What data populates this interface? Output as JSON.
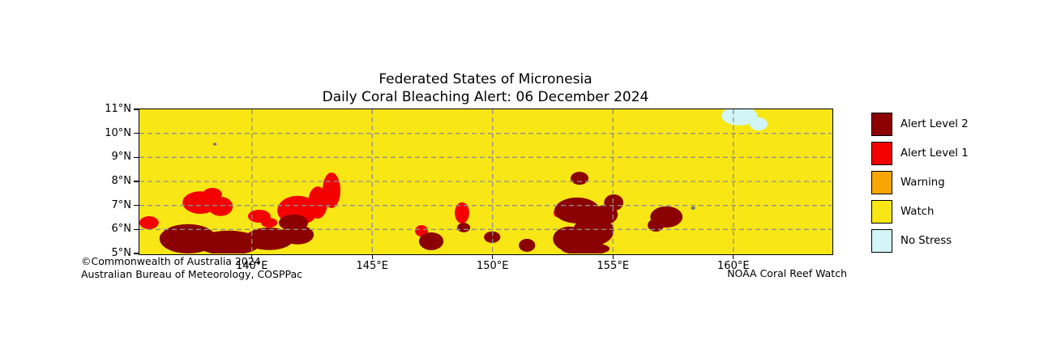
{
  "title": {
    "line1": "Federated States of Micronesia",
    "line2": "Daily Coral Bleaching Alert: 06 December 2024"
  },
  "credits": {
    "copyright": "©Commonwealth of Australia 2024",
    "agency": "Australian Bureau of Meteorology, COSPPac",
    "source": "NOAA Coral Reef Watch"
  },
  "legend": {
    "items": [
      {
        "key": "alert2",
        "label": "Alert Level 2",
        "color": "#8b0000"
      },
      {
        "key": "alert1",
        "label": "Alert Level 1",
        "color": "#f40000"
      },
      {
        "key": "warning",
        "label": "Warning",
        "color": "#f9a602"
      },
      {
        "key": "watch",
        "label": "Watch",
        "color": "#f8e715"
      },
      {
        "key": "nostress",
        "label": "No Stress",
        "color": "#d2f5f7"
      }
    ]
  },
  "chart_data": {
    "type": "heatmap",
    "title": "Federated States of Micronesia — Daily Coral Bleaching Alert: 06 December 2024",
    "x_axis": {
      "unit": "°E",
      "range": [
        135.33,
        164.08
      ],
      "ticks": [
        {
          "value": 140,
          "label": "140°E"
        },
        {
          "value": 145,
          "label": "145°E"
        },
        {
          "value": 150,
          "label": "150°E"
        },
        {
          "value": 155,
          "label": "155°E"
        },
        {
          "value": 160,
          "label": "160°E"
        }
      ]
    },
    "y_axis": {
      "unit": "°N",
      "range": [
        5,
        11
      ],
      "ticks": [
        {
          "value": 5,
          "label": "5°N"
        },
        {
          "value": 6,
          "label": "6°N"
        },
        {
          "value": 7,
          "label": "7°N"
        },
        {
          "value": 8,
          "label": "8°N"
        },
        {
          "value": 9,
          "label": "9°N"
        },
        {
          "value": 10,
          "label": "10°N"
        },
        {
          "value": 11,
          "label": "11°N"
        }
      ]
    },
    "grid": {
      "x_values": [
        140,
        145,
        150,
        155,
        160
      ],
      "y_values": [
        6,
        7,
        8,
        9,
        10
      ],
      "style": "dashed",
      "color": "#8f8f8f"
    },
    "background_level": "watch",
    "colors": {
      "alert2": "#8b0000",
      "alert1": "#f40000",
      "warning": "#f9a602",
      "watch": "#f8e715",
      "nostress": "#d2f5f7",
      "land": "#787878"
    },
    "regions": [
      {
        "level": "alert1",
        "lon": 137.86,
        "lat": 7.12,
        "rx": 0.74,
        "ry": 0.47
      },
      {
        "level": "alert1",
        "lon": 138.7,
        "lat": 6.96,
        "rx": 0.51,
        "ry": 0.4
      },
      {
        "level": "alert1",
        "lon": 138.36,
        "lat": 7.46,
        "rx": 0.4,
        "ry": 0.27
      },
      {
        "level": "alert1",
        "lon": 135.73,
        "lat": 6.28,
        "rx": 0.4,
        "ry": 0.27
      },
      {
        "level": "alert1",
        "lon": 136.51,
        "lat": 5.67,
        "rx": 0.34,
        "ry": 0.27
      },
      {
        "level": "alert1",
        "lon": 141.9,
        "lat": 6.79,
        "rx": 0.84,
        "ry": 0.61
      },
      {
        "level": "alert1",
        "lon": 142.74,
        "lat": 7.12,
        "rx": 0.4,
        "ry": 0.67
      },
      {
        "level": "alert1",
        "lon": 143.31,
        "lat": 7.63,
        "rx": 0.37,
        "ry": 0.74
      },
      {
        "level": "alert1",
        "lon": 140.31,
        "lat": 6.55,
        "rx": 0.47,
        "ry": 0.27
      },
      {
        "level": "alert1",
        "lon": 140.72,
        "lat": 6.28,
        "rx": 0.34,
        "ry": 0.2
      },
      {
        "level": "alert1",
        "lon": 147.05,
        "lat": 5.94,
        "rx": 0.27,
        "ry": 0.24
      },
      {
        "level": "alert1",
        "lon": 148.73,
        "lat": 6.69,
        "rx": 0.3,
        "ry": 0.44
      },
      {
        "level": "alert1",
        "lon": 152.77,
        "lat": 6.69,
        "rx": 0.24,
        "ry": 0.2
      },
      {
        "level": "alert2",
        "lon": 137.35,
        "lat": 5.61,
        "rx": 1.18,
        "ry": 0.61
      },
      {
        "level": "alert2",
        "lon": 139.03,
        "lat": 5.44,
        "rx": 1.35,
        "ry": 0.51
      },
      {
        "level": "alert2",
        "lon": 140.72,
        "lat": 5.61,
        "rx": 1.01,
        "ry": 0.47
      },
      {
        "level": "alert2",
        "lon": 141.9,
        "lat": 5.78,
        "rx": 0.67,
        "ry": 0.4
      },
      {
        "level": "alert2",
        "lon": 141.73,
        "lat": 6.28,
        "rx": 0.61,
        "ry": 0.34
      },
      {
        "level": "alert2",
        "lon": 147.45,
        "lat": 5.51,
        "rx": 0.51,
        "ry": 0.37
      },
      {
        "level": "alert2",
        "lon": 148.8,
        "lat": 6.08,
        "rx": 0.27,
        "ry": 0.2
      },
      {
        "level": "alert2",
        "lon": 149.98,
        "lat": 5.68,
        "rx": 0.34,
        "ry": 0.24
      },
      {
        "level": "alert2",
        "lon": 151.43,
        "lat": 5.34,
        "rx": 0.34,
        "ry": 0.27
      },
      {
        "level": "alert2",
        "lon": 153.51,
        "lat": 6.79,
        "rx": 0.94,
        "ry": 0.54
      },
      {
        "level": "alert2",
        "lon": 154.19,
        "lat": 5.94,
        "rx": 0.84,
        "ry": 0.61
      },
      {
        "level": "alert2",
        "lon": 153.18,
        "lat": 5.61,
        "rx": 0.67,
        "ry": 0.51
      },
      {
        "level": "alert2",
        "lon": 154.69,
        "lat": 6.62,
        "rx": 0.51,
        "ry": 0.4
      },
      {
        "level": "alert2",
        "lon": 155.03,
        "lat": 7.12,
        "rx": 0.4,
        "ry": 0.34
      },
      {
        "level": "alert2",
        "lon": 153.85,
        "lat": 5.2,
        "rx": 1.01,
        "ry": 0.27
      },
      {
        "level": "alert2",
        "lon": 153.61,
        "lat": 8.13,
        "rx": 0.37,
        "ry": 0.27
      },
      {
        "level": "alert2",
        "lon": 157.22,
        "lat": 6.52,
        "rx": 0.67,
        "ry": 0.44
      },
      {
        "level": "alert2",
        "lon": 156.78,
        "lat": 6.18,
        "rx": 0.34,
        "ry": 0.27
      },
      {
        "level": "nostress",
        "lon": 160.25,
        "lat": 10.73,
        "rx": 0.74,
        "ry": 0.4
      },
      {
        "level": "nostress",
        "lon": 161.05,
        "lat": 10.39,
        "rx": 0.37,
        "ry": 0.27
      },
      {
        "level": "land",
        "lon": 158.33,
        "lat": 6.89,
        "rx": 0.09,
        "ry": 0.07
      },
      {
        "level": "land",
        "lon": 138.46,
        "lat": 9.55,
        "rx": 0.08,
        "ry": 0.06
      }
    ]
  }
}
